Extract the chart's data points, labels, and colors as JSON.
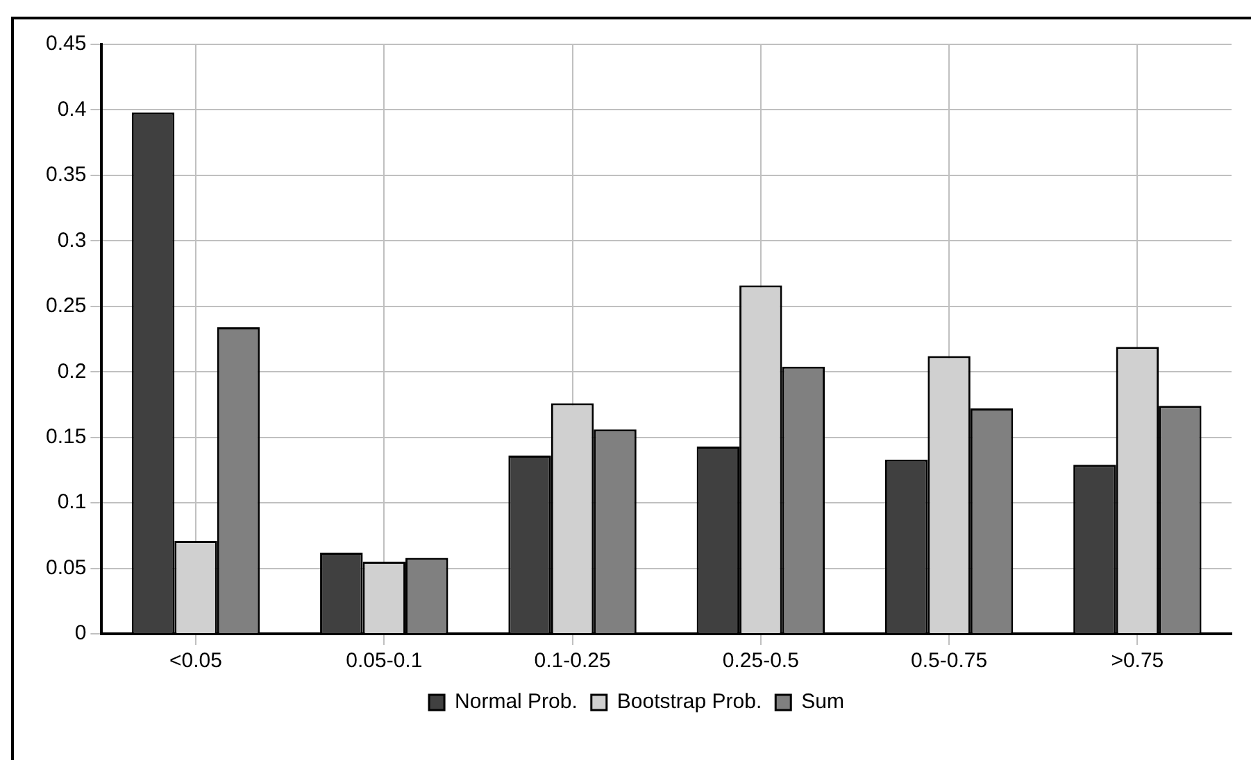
{
  "chart_data": {
    "type": "bar",
    "categories": [
      "<0.05",
      "0.05-0.1",
      "0.1-0.25",
      "0.25-0.5",
      "0.5-0.75",
      ">0.75"
    ],
    "series": [
      {
        "name": "Normal Prob.",
        "color": "#404040",
        "values": [
          0.398,
          0.062,
          0.136,
          0.143,
          0.133,
          0.129
        ]
      },
      {
        "name": "Bootstrap Prob.",
        "color": "#d0d0d0",
        "values": [
          0.071,
          0.055,
          0.176,
          0.266,
          0.212,
          0.219
        ]
      },
      {
        "name": "Sum",
        "color": "#808080",
        "values": [
          0.234,
          0.058,
          0.156,
          0.204,
          0.172,
          0.174
        ]
      }
    ],
    "ylim": [
      0,
      0.45
    ],
    "yticks": [
      0,
      0.05,
      0.1,
      0.15,
      0.2,
      0.25,
      0.3,
      0.35,
      0.4,
      0.45
    ],
    "grid": true,
    "legend": "bottom"
  }
}
